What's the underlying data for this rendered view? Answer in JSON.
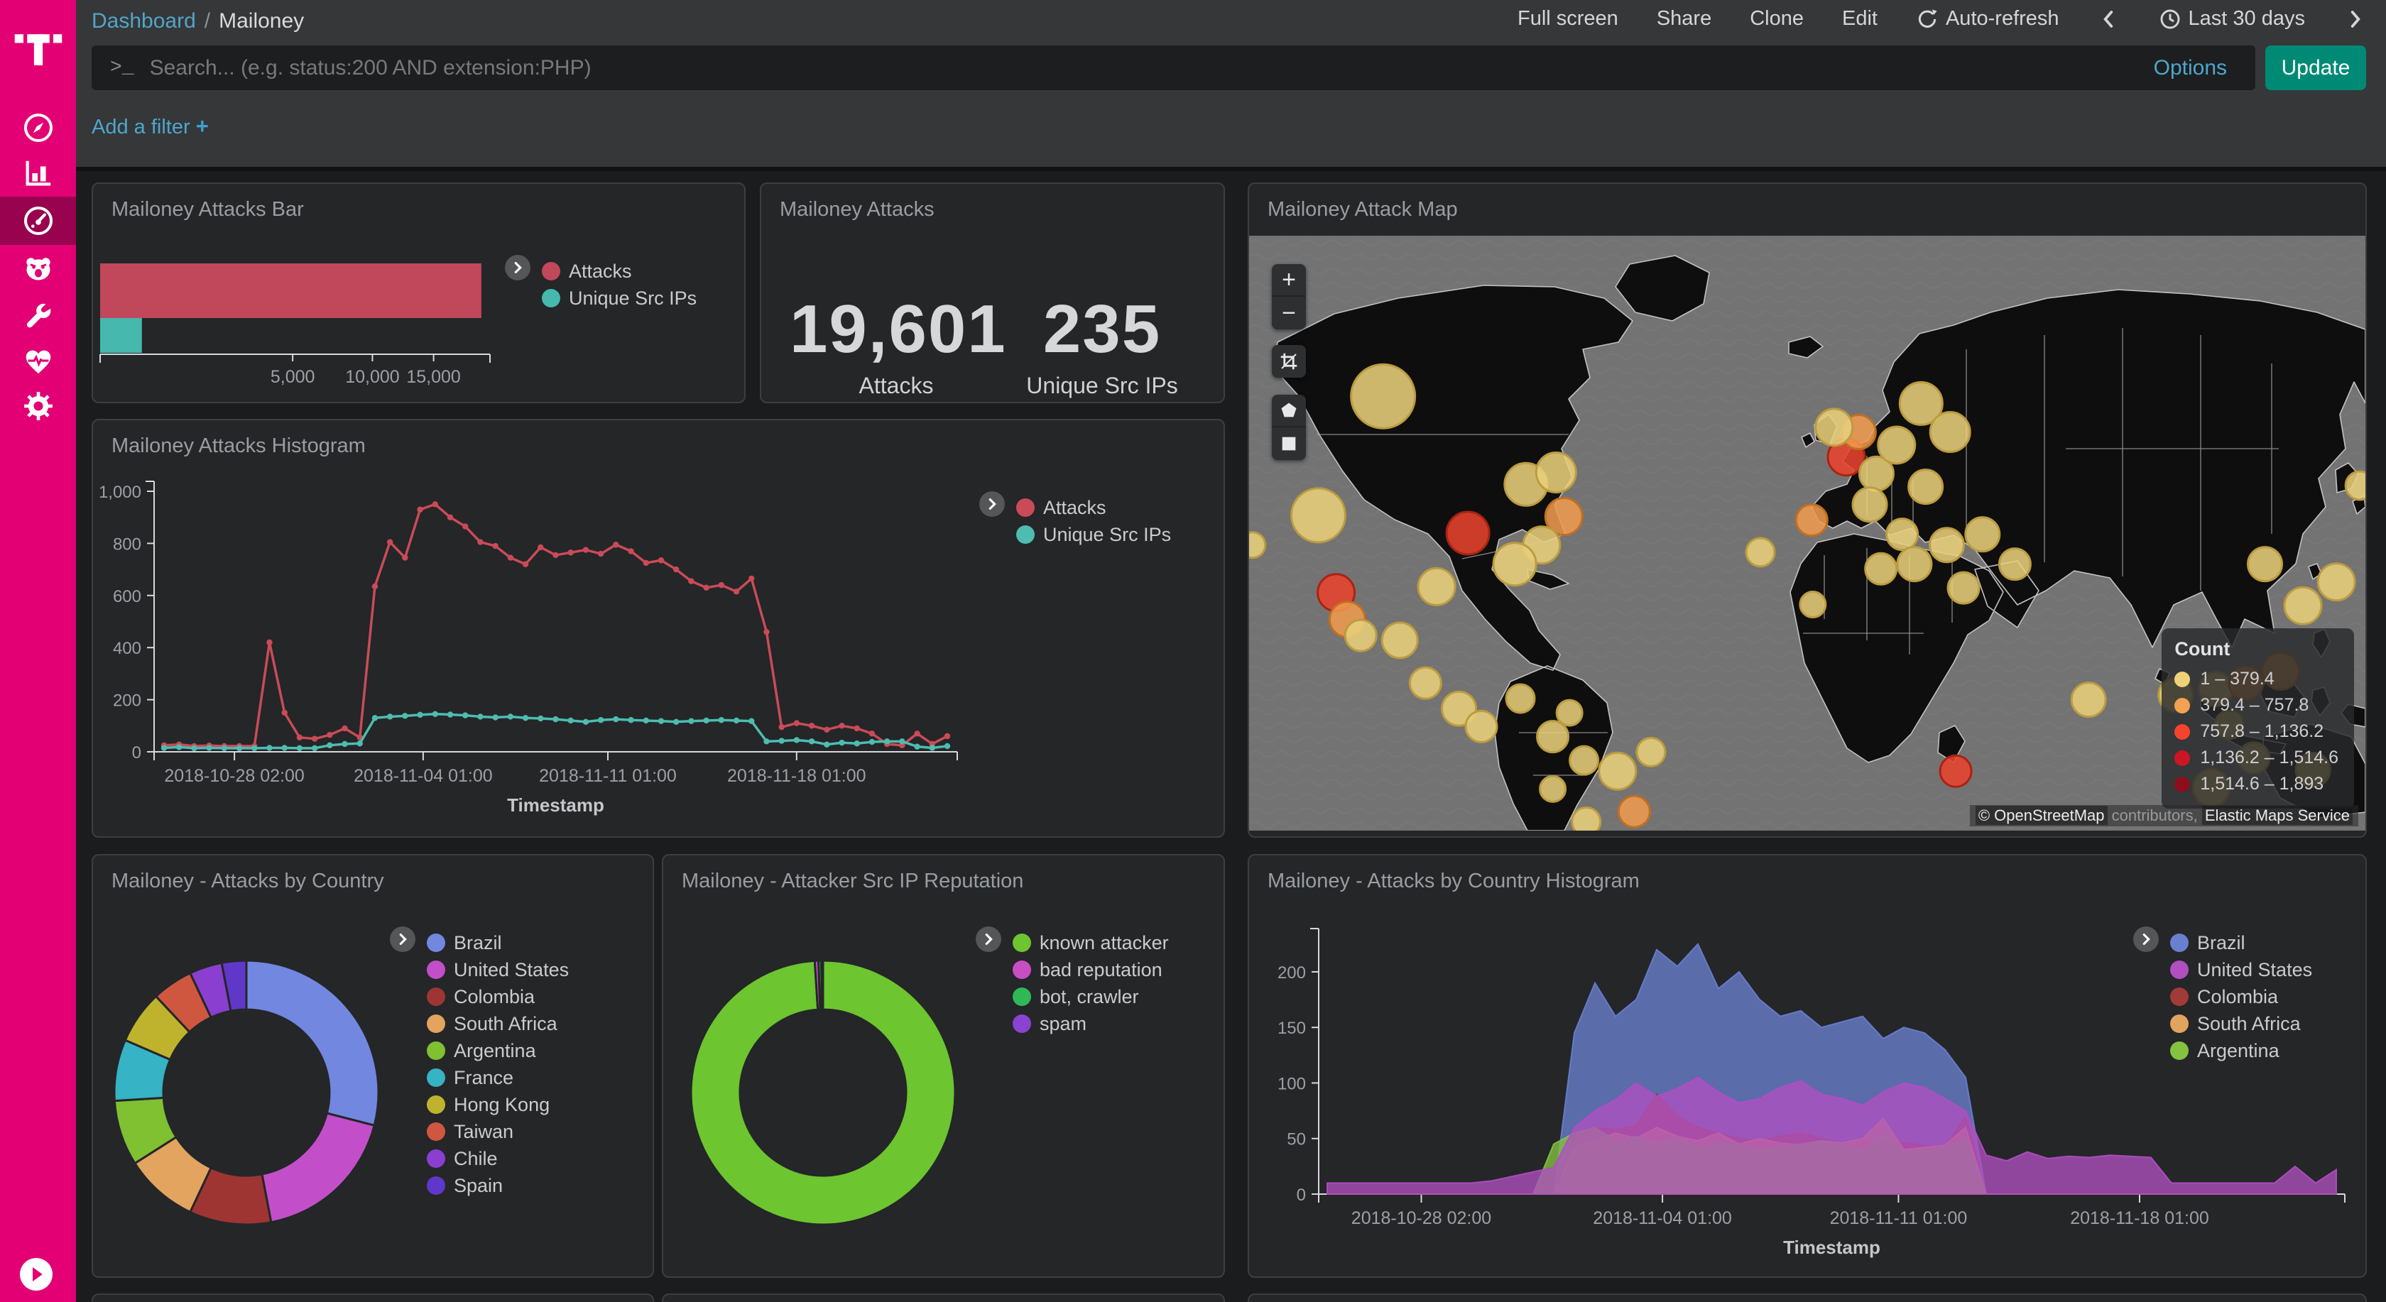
{
  "chrome": {
    "breadcrumb": {
      "link": "Dashboard",
      "separator": "/",
      "current": "Mailoney"
    },
    "menu": [
      "Full screen",
      "Share",
      "Clone",
      "Edit"
    ],
    "autorefresh_label": "Auto-refresh",
    "time_label": "Last 30 days",
    "search": {
      "prompt": ">_",
      "placeholder": "Search... (e.g. status:200 AND extension:PHP)",
      "options_label": "Options",
      "update_label": "Update"
    },
    "filter_label": "Add a filter ",
    "filter_plus": "+"
  },
  "sidebar": {
    "items": [
      "discover",
      "visualize",
      "dashboard",
      "bear",
      "devtools",
      "monitoring",
      "management"
    ],
    "active": "dashboard"
  },
  "panels": {
    "bar": {
      "title": "Mailoney Attacks Bar"
    },
    "metric": {
      "title": "Mailoney Attacks"
    },
    "map": {
      "title": "Mailoney Attack Map"
    },
    "histogram": {
      "title": "Mailoney Attacks Histogram"
    },
    "country_pie": {
      "title": "Mailoney - Attacks by Country"
    },
    "reputation_pie": {
      "title": "Mailoney - Attacker Src IP Reputation"
    },
    "country_histogram": {
      "title": "Mailoney - Attacks by Country Histogram"
    }
  },
  "chart_data": {
    "attacks_bar": {
      "type": "bar",
      "orientation": "horizontal",
      "scale": "sqrt",
      "axis_max": 20500,
      "x_ticks": [
        {
          "v": 5000,
          "label": "5,000"
        },
        {
          "v": 10000,
          "label": "10,000"
        },
        {
          "v": 15000,
          "label": "15,000"
        }
      ],
      "series": [
        {
          "name": "Attacks",
          "value": 19601,
          "color": "#c0485a"
        },
        {
          "name": "Unique Src IPs",
          "value": 235,
          "color": "#46b8ad"
        }
      ]
    },
    "attacks_metric": {
      "type": "metric",
      "items": [
        {
          "value": "19,601",
          "label": "Attacks"
        },
        {
          "value": "235",
          "label": "Unique Src IPs"
        }
      ]
    },
    "attacks_histogram": {
      "type": "line",
      "xlabel": "Timestamp",
      "ylim": [
        0,
        1000
      ],
      "y_ticks": [
        {
          "v": 0,
          "label": "0"
        },
        {
          "v": 200,
          "label": "200"
        },
        {
          "v": 400,
          "label": "400"
        },
        {
          "v": 600,
          "label": "600"
        },
        {
          "v": 800,
          "label": "800"
        },
        {
          "v": 1000,
          "label": "1,000"
        }
      ],
      "x_ticks": [
        {
          "f": 0.1,
          "label": "2018-10-28 02:00"
        },
        {
          "f": 0.335,
          "label": "2018-11-04 01:00"
        },
        {
          "f": 0.565,
          "label": "2018-11-11 01:00"
        },
        {
          "f": 0.8,
          "label": "2018-11-18 01:00"
        }
      ],
      "series": [
        {
          "name": "Attacks",
          "color": "#ca4b58",
          "values": [
            25,
            28,
            22,
            24,
            22,
            22,
            22,
            420,
            150,
            55,
            50,
            65,
            90,
            55,
            635,
            805,
            745,
            930,
            950,
            900,
            865,
            805,
            790,
            745,
            720,
            785,
            755,
            765,
            775,
            760,
            795,
            770,
            725,
            735,
            700,
            655,
            630,
            640,
            615,
            665,
            460,
            95,
            110,
            100,
            85,
            100,
            90,
            70,
            30,
            25,
            70,
            30,
            60
          ]
        },
        {
          "name": "Unique Src IPs",
          "color": "#4ebcb0",
          "values": [
            15,
            18,
            14,
            15,
            14,
            14,
            14,
            15,
            15,
            14,
            14,
            25,
            30,
            32,
            130,
            135,
            138,
            142,
            145,
            143,
            140,
            135,
            132,
            135,
            130,
            128,
            125,
            120,
            115,
            122,
            125,
            122,
            120,
            118,
            115,
            118,
            120,
            122,
            120,
            118,
            40,
            42,
            45,
            40,
            28,
            35,
            32,
            38,
            40,
            40,
            20,
            15,
            22
          ]
        }
      ]
    },
    "country_pie": {
      "type": "pie",
      "donut": true,
      "slices": [
        {
          "name": "Brazil",
          "value": 29,
          "color": "#7287e0"
        },
        {
          "name": "United States",
          "value": 18,
          "color": "#c24fc9"
        },
        {
          "name": "Colombia",
          "value": 10,
          "color": "#9e3533"
        },
        {
          "name": "South Africa",
          "value": 9,
          "color": "#e2a45f"
        },
        {
          "name": "Argentina",
          "value": 8,
          "color": "#7fc131"
        },
        {
          "name": "France",
          "value": 7.5,
          "color": "#36b3c5"
        },
        {
          "name": "Hong Kong",
          "value": 6.5,
          "color": "#bfb32d"
        },
        {
          "name": "Taiwan",
          "value": 5,
          "color": "#d0573f"
        },
        {
          "name": "Chile",
          "value": 4,
          "color": "#8a3fd0"
        },
        {
          "name": "Spain",
          "value": 3,
          "color": "#6038c9"
        }
      ]
    },
    "reputation_pie": {
      "type": "pie",
      "donut": true,
      "slices": [
        {
          "name": "known attacker",
          "value": 99.0,
          "color": "#6dc52f"
        },
        {
          "name": "bad reputation",
          "value": 0.45,
          "color": "#c94ec2"
        },
        {
          "name": "bot, crawler",
          "value": 0.35,
          "color": "#2eb856"
        },
        {
          "name": "spam",
          "value": 0.2,
          "color": "#8a43d0"
        }
      ]
    },
    "country_histogram": {
      "type": "area",
      "overlaid": true,
      "xlabel": "Timestamp",
      "ylim": [
        0,
        230
      ],
      "y_ticks": [
        {
          "v": 0,
          "label": "0"
        },
        {
          "v": 50,
          "label": "50"
        },
        {
          "v": 100,
          "label": "100"
        },
        {
          "v": 150,
          "label": "150"
        },
        {
          "v": 200,
          "label": "200"
        }
      ],
      "x_ticks": [
        {
          "f": 0.1,
          "label": "2018-10-28 02:00"
        },
        {
          "f": 0.335,
          "label": "2018-11-04 01:00"
        },
        {
          "f": 0.565,
          "label": "2018-11-11 01:00"
        },
        {
          "f": 0.8,
          "label": "2018-11-18 01:00"
        }
      ],
      "draw_order": [
        "Brazil",
        "Colombia",
        "South Africa",
        "Argentina",
        "United States"
      ],
      "legend_order": [
        "Brazil",
        "United States",
        "Colombia",
        "South Africa",
        "Argentina"
      ],
      "series": [
        {
          "name": "Brazil",
          "color": "#6980d0",
          "values": [
            0,
            0,
            0,
            0,
            0,
            0,
            0,
            0,
            0,
            0,
            0,
            0,
            145,
            190,
            160,
            175,
            220,
            205,
            225,
            185,
            200,
            175,
            160,
            165,
            150,
            155,
            160,
            140,
            150,
            145,
            130,
            105,
            0,
            0,
            0,
            0,
            0,
            0,
            0,
            0,
            0,
            0,
            0,
            0,
            0,
            0,
            0,
            0,
            0,
            0
          ]
        },
        {
          "name": "Colombia",
          "color": "#a03b38",
          "values": [
            0,
            0,
            0,
            0,
            0,
            0,
            0,
            0,
            0,
            0,
            0,
            0,
            55,
            60,
            58,
            62,
            90,
            70,
            60,
            55,
            50,
            48,
            52,
            55,
            50,
            45,
            48,
            50,
            46,
            44,
            42,
            70,
            0,
            0,
            0,
            0,
            0,
            0,
            0,
            0,
            0,
            0,
            0,
            0,
            0,
            0,
            0,
            0,
            0,
            0
          ]
        },
        {
          "name": "South Africa",
          "color": "#dfa45e",
          "values": [
            0,
            0,
            0,
            0,
            0,
            0,
            0,
            0,
            0,
            0,
            0,
            0,
            42,
            48,
            55,
            50,
            60,
            52,
            48,
            55,
            45,
            50,
            46,
            44,
            48,
            46,
            50,
            68,
            40,
            42,
            44,
            60,
            0,
            0,
            0,
            0,
            0,
            0,
            0,
            0,
            0,
            0,
            0,
            0,
            0,
            0,
            0,
            0,
            0,
            0
          ]
        },
        {
          "name": "Argentina",
          "color": "#84c340",
          "values": [
            0,
            0,
            0,
            0,
            0,
            0,
            0,
            0,
            0,
            0,
            0,
            45,
            55,
            60,
            48,
            52,
            45,
            50,
            42,
            46,
            44,
            40,
            42,
            45,
            48,
            44,
            40,
            55,
            38,
            40,
            42,
            50,
            0,
            0,
            0,
            0,
            0,
            0,
            0,
            0,
            0,
            0,
            0,
            0,
            0,
            0,
            0,
            0,
            0,
            0
          ]
        },
        {
          "name": "United States",
          "color": "#b04fc0",
          "values": [
            10,
            10,
            10,
            10,
            10,
            10,
            10,
            10,
            12,
            16,
            20,
            24,
            60,
            75,
            85,
            100,
            88,
            95,
            105,
            92,
            82,
            86,
            96,
            102,
            90,
            86,
            80,
            92,
            100,
            96,
            86,
            75,
            35,
            30,
            38,
            32,
            34,
            33,
            35,
            34,
            33,
            10,
            10,
            10,
            10,
            10,
            10,
            25,
            10,
            22
          ]
        }
      ]
    },
    "attack_map": {
      "type": "map-bubbles",
      "legend_title": "Count",
      "legend": [
        {
          "label": "1 – 379.4",
          "color": "#efd277"
        },
        {
          "label": "379.4 – 757.8",
          "color": "#f2a254"
        },
        {
          "label": "757.8 – 1,136.2",
          "color": "#f4442e"
        },
        {
          "label": "1,136.2 – 1,514.6",
          "color": "#cc1625"
        },
        {
          "label": "1,514.6 – 1,893",
          "color": "#8c0e1d"
        }
      ],
      "palette": {
        "y": {
          "f": "#e8cf7b",
          "s": "#bb9c40"
        },
        "o": {
          "f": "#ee9a4e",
          "s": "#c06f22"
        },
        "r": {
          "f": "#e8432c",
          "s": "#a82413"
        },
        "d": {
          "f": "#c1121f",
          "s": "#6d060f"
        }
      },
      "bubbles": [
        [
          0.12,
          0.27,
          45,
          "y"
        ],
        [
          0.062,
          0.47,
          38,
          "y"
        ],
        [
          0.078,
          0.6,
          26,
          "r"
        ],
        [
          0.088,
          0.645,
          25,
          "o"
        ],
        [
          0.1,
          0.672,
          22,
          "y"
        ],
        [
          0.196,
          0.5,
          30,
          "r"
        ],
        [
          0.168,
          0.59,
          26,
          "y"
        ],
        [
          0.248,
          0.418,
          30,
          "y"
        ],
        [
          0.275,
          0.398,
          28,
          "y"
        ],
        [
          0.282,
          0.472,
          26,
          "o"
        ],
        [
          0.262,
          0.52,
          26,
          "y"
        ],
        [
          0.238,
          0.552,
          30,
          "y"
        ],
        [
          0.135,
          0.68,
          25,
          "y"
        ],
        [
          0.158,
          0.752,
          22,
          "y"
        ],
        [
          0.188,
          0.795,
          24,
          "y"
        ],
        [
          0.208,
          0.825,
          22,
          "y"
        ],
        [
          0.243,
          0.778,
          20,
          "y"
        ],
        [
          0.272,
          0.842,
          22,
          "y"
        ],
        [
          0.287,
          0.802,
          18,
          "y"
        ],
        [
          0.3,
          0.882,
          20,
          "y"
        ],
        [
          0.272,
          0.93,
          18,
          "y"
        ],
        [
          0.33,
          0.9,
          26,
          "y"
        ],
        [
          0.36,
          0.868,
          20,
          "y"
        ],
        [
          0.345,
          0.968,
          22,
          "o"
        ],
        [
          0.302,
          0.985,
          20,
          "y"
        ],
        [
          0.633,
          0.9,
          22,
          "r"
        ],
        [
          0.505,
          0.62,
          18,
          "y"
        ],
        [
          0.458,
          0.532,
          20,
          "y"
        ],
        [
          0.535,
          0.372,
          26,
          "r"
        ],
        [
          0.546,
          0.33,
          24,
          "o"
        ],
        [
          0.524,
          0.322,
          26,
          "y"
        ],
        [
          0.562,
          0.4,
          24,
          "y"
        ],
        [
          0.556,
          0.452,
          24,
          "y"
        ],
        [
          0.58,
          0.352,
          26,
          "y"
        ],
        [
          0.602,
          0.282,
          30,
          "y"
        ],
        [
          0.628,
          0.33,
          28,
          "y"
        ],
        [
          0.606,
          0.422,
          24,
          "y"
        ],
        [
          0.585,
          0.502,
          22,
          "y"
        ],
        [
          0.504,
          0.478,
          22,
          "o"
        ],
        [
          0.566,
          0.56,
          22,
          "y"
        ],
        [
          0.596,
          0.552,
          24,
          "y"
        ],
        [
          0.625,
          0.52,
          24,
          "y"
        ],
        [
          0.64,
          0.592,
          22,
          "y"
        ],
        [
          0.657,
          0.502,
          24,
          "y"
        ],
        [
          0.686,
          0.552,
          22,
          "y"
        ],
        [
          0.752,
          0.78,
          24,
          "y"
        ],
        [
          0.83,
          0.772,
          24,
          "y"
        ],
        [
          0.866,
          0.762,
          24,
          "y"
        ],
        [
          0.893,
          0.752,
          24,
          "o"
        ],
        [
          0.924,
          0.732,
          26,
          "o"
        ],
        [
          0.944,
          0.622,
          26,
          "y"
        ],
        [
          0.974,
          0.582,
          26,
          "y"
        ],
        [
          0.91,
          0.552,
          24,
          "y"
        ],
        [
          0.878,
          0.822,
          20,
          "y"
        ],
        [
          0.9,
          0.878,
          22,
          "y"
        ],
        [
          0.953,
          0.898,
          24,
          "y"
        ],
        [
          0.862,
          0.928,
          26,
          "y"
        ],
        [
          0.995,
          0.42,
          20,
          "y"
        ],
        [
          0.003,
          0.52,
          18,
          "y"
        ]
      ],
      "attribution": {
        "copyright": "© OpenStreetMap",
        "middle": "contributors,",
        "service": "Elastic Maps Service"
      }
    }
  }
}
